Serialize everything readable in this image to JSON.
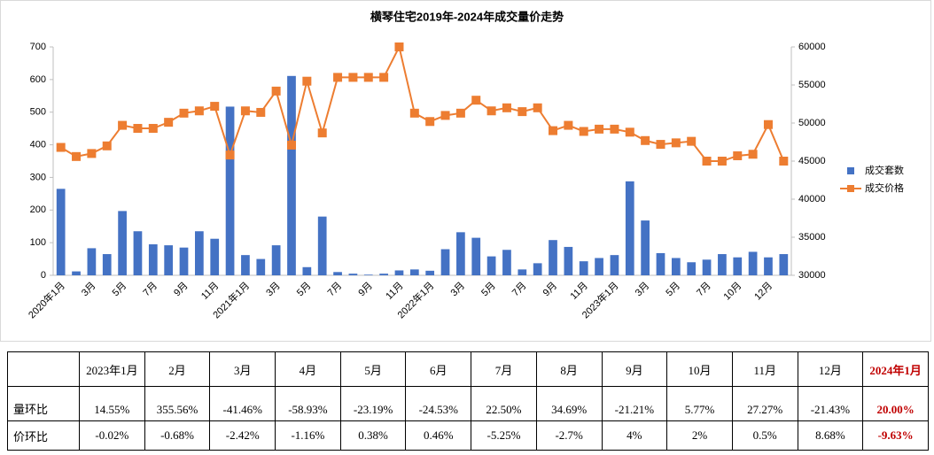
{
  "chart_data": {
    "type": "bar",
    "title": "横琴住宅2019年-2024年成交量价走势",
    "categories": [
      "2020年1月",
      null,
      "3月",
      null,
      "5月",
      null,
      "7月",
      null,
      "9月",
      null,
      "11月",
      null,
      "2021年1月",
      null,
      "3月",
      null,
      "5月",
      null,
      "7月",
      null,
      "9月",
      null,
      "11月",
      null,
      "2022年1月",
      null,
      "3月",
      null,
      "5月",
      null,
      "7月",
      null,
      "9月",
      null,
      "11月",
      null,
      "2023年1月",
      null,
      "3月",
      null,
      "5月",
      null,
      "7月",
      null,
      "10月",
      null,
      "12月",
      null
    ],
    "series": [
      {
        "name": "成交套数",
        "type": "bar",
        "axis": "y",
        "color": "#4472c4",
        "values": [
          265,
          12,
          83,
          65,
          197,
          135,
          95,
          92,
          85,
          135,
          112,
          517,
          62,
          50,
          92,
          611,
          25,
          180,
          10,
          5,
          2,
          5,
          15,
          18,
          14,
          80,
          132,
          115,
          58,
          78,
          18,
          37,
          108,
          87,
          43,
          53,
          62,
          288,
          168,
          68,
          53,
          40,
          48,
          65,
          55,
          72,
          55,
          65
        ]
      },
      {
        "name": "成交价格",
        "type": "line",
        "axis": "y2",
        "color": "#ed7d31",
        "values": [
          46800,
          45600,
          46000,
          47000,
          49700,
          49300,
          49300,
          50100,
          51300,
          51600,
          52200,
          45800,
          51600,
          51400,
          54200,
          47100,
          55500,
          48700,
          56000,
          56000,
          56000,
          56000,
          60000,
          51300,
          50200,
          51000,
          51300,
          53000,
          51600,
          52000,
          51500,
          52000,
          49000,
          49700,
          48900,
          49200,
          49200,
          48800,
          47700,
          47200,
          47400,
          47600,
          45000,
          45000,
          45700,
          45900,
          49800,
          45000
        ]
      }
    ],
    "ylim": [
      0,
      700
    ],
    "yticks": [
      0,
      100,
      200,
      300,
      400,
      500,
      600,
      700
    ],
    "y2lim": [
      30000,
      60000
    ],
    "y2ticks": [
      30000,
      35000,
      40000,
      45000,
      50000,
      55000,
      60000
    ],
    "grid": false,
    "legend": "right"
  },
  "table": {
    "header": [
      "2023年1月",
      "2月",
      "3月",
      "4月",
      "5月",
      "6月",
      "7月",
      "8月",
      "9月",
      "10月",
      "11月",
      "12月",
      "2024年1月"
    ],
    "rows": [
      {
        "label": "量环比",
        "values": [
          "14.55%",
          "355.56%",
          "-41.46%",
          "-58.93%",
          "-23.19%",
          "-24.53%",
          "22.50%",
          "34.69%",
          "-21.21%",
          "5.77%",
          "27.27%",
          "-21.43%",
          "20.00%"
        ]
      },
      {
        "label": "价环比",
        "values": [
          "-0.02%",
          "-0.68%",
          "-2.42%",
          "-1.16%",
          "0.38%",
          "0.46%",
          "-5.25%",
          "-2.7%",
          "4%",
          "2%",
          "0.5%",
          "8.68%",
          "-9.63%"
        ]
      }
    ]
  }
}
